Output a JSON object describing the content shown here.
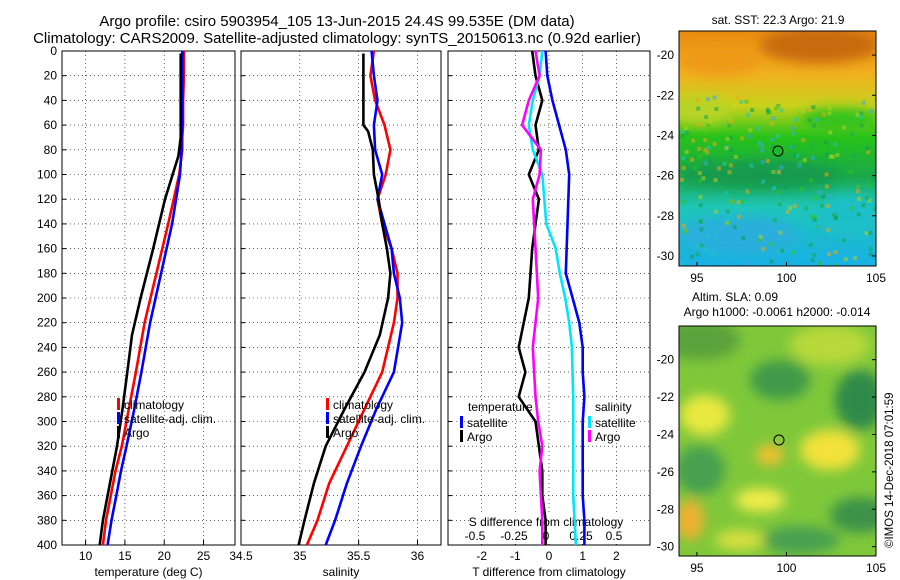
{
  "header": {
    "line1": "Argo profile: csiro 5903954_105 13-Jun-2015 24.4S 99.535E (DM data)",
    "line2": "Climatology: CARS2009. Satellite-adjusted climatology: synTS_20150613.nc (0.92d earlier)"
  },
  "footer_credit": "©IMOS 14-Dec-2018 07:01:59",
  "colors": {
    "climatology": "#ff0000",
    "satellite": "#0000ff",
    "argo": "#000000",
    "sat_salinity": "#00e5ff",
    "argo_salinity": "#ff00ff"
  },
  "chart_data": [
    {
      "type": "line",
      "name": "temperature-profile",
      "xlabel": "temperature (deg C)",
      "ylabel": "",
      "xlim": [
        7,
        29
      ],
      "ylim": [
        400,
        0
      ],
      "xticks": [
        10,
        15,
        20,
        25
      ],
      "yticks": [
        0,
        20,
        40,
        60,
        80,
        100,
        120,
        140,
        160,
        180,
        200,
        220,
        240,
        260,
        280,
        300,
        320,
        340,
        360,
        380,
        400
      ],
      "grid": true,
      "legend": {
        "position": "lower-right",
        "entries": [
          "climatology",
          "satellite-adj. clim.",
          "Argo"
        ]
      },
      "series": [
        {
          "name": "climatology",
          "color": "#ff0000",
          "x": [
            22.5,
            22.5,
            22.4,
            22.4,
            22.3,
            22.3,
            21.9,
            20.5,
            19.0,
            17.5,
            16.4,
            15.5,
            14.6,
            13.8,
            13.2,
            12.6,
            12.2
          ],
          "y": [
            0,
            20,
            40,
            60,
            70,
            80,
            100,
            140,
            180,
            220,
            260,
            290,
            320,
            340,
            360,
            380,
            400
          ]
        },
        {
          "name": "satellite-adj. clim.",
          "color": "#0000ff",
          "x": [
            22.3,
            22.3,
            22.3,
            22.3,
            22.2,
            22.2,
            22.0,
            21.0,
            19.6,
            18.2,
            17.1,
            16.2,
            15.2,
            14.5,
            13.9,
            13.3,
            12.8
          ],
          "y": [
            0,
            20,
            40,
            60,
            70,
            80,
            100,
            140,
            180,
            220,
            260,
            290,
            320,
            340,
            360,
            380,
            400
          ]
        },
        {
          "name": "Argo",
          "color": "#000000",
          "x": [
            22.1,
            22.1,
            22.1,
            22.1,
            22.1,
            21.8,
            20.1,
            18.6,
            17.0,
            15.9,
            15.3,
            14.7,
            14.0,
            13.4,
            12.8,
            12.2,
            11.8
          ],
          "y": [
            2,
            20,
            40,
            60,
            70,
            85,
            120,
            160,
            200,
            230,
            260,
            290,
            320,
            340,
            360,
            380,
            400
          ]
        }
      ]
    },
    {
      "type": "line",
      "name": "salinity-profile",
      "xlabel": "salinity",
      "xlim": [
        34.5,
        36.2
      ],
      "ylim": [
        400,
        0
      ],
      "xticks": [
        34.5,
        35,
        35.5,
        36
      ],
      "xtick_labels": [
        "34.5",
        "35",
        "35.5",
        "36"
      ],
      "grid": true,
      "legend": {
        "position": "lower-right",
        "entries": [
          "climatology",
          "satellite-adj. clim.",
          "Argo"
        ]
      },
      "series": [
        {
          "name": "climatology",
          "color": "#ff0000",
          "x": [
            35.63,
            35.6,
            35.64,
            35.72,
            35.77,
            35.73,
            35.66,
            35.7,
            35.78,
            35.83,
            35.83,
            35.8,
            35.7,
            35.55,
            35.4,
            35.25,
            35.15,
            35.06
          ],
          "y": [
            0,
            20,
            40,
            60,
            80,
            100,
            120,
            140,
            160,
            180,
            200,
            220,
            260,
            290,
            320,
            350,
            380,
            400
          ]
        },
        {
          "name": "satellite-adj. clim.",
          "color": "#0000ff",
          "x": [
            35.61,
            35.63,
            35.66,
            35.63,
            35.64,
            35.7,
            35.66,
            35.72,
            35.78,
            35.8,
            35.85,
            35.87,
            35.8,
            35.65,
            35.52,
            35.4,
            35.3,
            35.22
          ],
          "y": [
            0,
            20,
            40,
            60,
            80,
            100,
            120,
            140,
            160,
            180,
            200,
            220,
            260,
            290,
            320,
            350,
            380,
            400
          ]
        },
        {
          "name": "Argo",
          "color": "#000000",
          "x": [
            35.54,
            35.54,
            35.54,
            35.54,
            35.58,
            35.62,
            35.63,
            35.67,
            35.7,
            35.74,
            35.77,
            35.75,
            35.68,
            35.55,
            35.38,
            35.22,
            35.12,
            35.04,
            34.99
          ],
          "y": [
            2,
            20,
            40,
            60,
            65,
            80,
            100,
            120,
            140,
            160,
            180,
            200,
            230,
            260,
            290,
            320,
            350,
            380,
            400
          ]
        }
      ]
    },
    {
      "type": "line",
      "name": "difference-profile",
      "xlabel": "T difference from climatology",
      "xlabel_top": "S difference from climatology",
      "xlim": [
        -3,
        3
      ],
      "ylim": [
        400,
        0
      ],
      "xticks": [
        -2,
        -1,
        0,
        1,
        2
      ],
      "xtick_labels_t": [
        "-2",
        "-1",
        "0",
        "1",
        "2"
      ],
      "xtick_labels_s": [
        "-0.5",
        "-0.25",
        "0",
        "0.25",
        "0.5"
      ],
      "grid": true,
      "legend": {
        "temperature_title": "temperature",
        "salinity_title": "salinity",
        "entries_t": [
          "satellite",
          "Argo"
        ],
        "entries_s": [
          "satellite",
          "Argo"
        ]
      },
      "series": [
        {
          "name": "T satellite",
          "color": "#0000ff",
          "x": [
            -0.1,
            -0.05,
            0.1,
            0.3,
            0.5,
            0.6,
            0.55,
            0.5,
            0.7,
            0.9,
            1.0,
            1.0,
            1.05,
            1.0,
            1.0,
            1.0,
            1.0,
            1.05,
            1.05
          ],
          "y": [
            0,
            20,
            40,
            60,
            80,
            100,
            140,
            180,
            200,
            220,
            240,
            260,
            280,
            300,
            320,
            340,
            360,
            380,
            400
          ]
        },
        {
          "name": "T Argo",
          "color": "#000000",
          "x": [
            -0.5,
            -0.4,
            -0.2,
            -0.4,
            -0.3,
            -0.6,
            -0.3,
            -0.4,
            -0.5,
            -0.6,
            -0.9,
            -0.7,
            -0.9,
            -0.4,
            -0.3,
            -0.2,
            -0.2,
            -0.1,
            -0.1
          ],
          "y": [
            0,
            20,
            40,
            60,
            80,
            100,
            120,
            140,
            160,
            200,
            240,
            260,
            280,
            300,
            320,
            340,
            360,
            380,
            400
          ]
        },
        {
          "name": "S satellite",
          "color": "#00e5ff",
          "x": [
            -0.05,
            -0.07,
            -0.12,
            -0.15,
            -0.12,
            -0.05,
            -0.02,
            0.05,
            0.08,
            0.12,
            0.15,
            0.17,
            0.18,
            0.18,
            0.18,
            0.19,
            0.2
          ],
          "y": [
            0,
            20,
            40,
            60,
            80,
            100,
            140,
            160,
            180,
            200,
            220,
            240,
            280,
            320,
            360,
            380,
            400
          ]
        },
        {
          "name": "S Argo",
          "color": "#ff00ff",
          "x": [
            -0.1,
            -0.07,
            -0.15,
            -0.2,
            -0.06,
            -0.07,
            -0.12,
            -0.1,
            -0.08,
            -0.12,
            -0.1,
            -0.08,
            -0.05,
            -0.07,
            -0.06,
            -0.05,
            -0.05
          ],
          "y": [
            0,
            20,
            40,
            60,
            80,
            100,
            120,
            160,
            200,
            240,
            280,
            300,
            320,
            340,
            360,
            380,
            400
          ]
        }
      ]
    },
    {
      "type": "heatmap",
      "name": "sst-map",
      "title": "sat. SST: 22.3  Argo: 21.9",
      "xlim": [
        94,
        105
      ],
      "ylim": [
        -30.5,
        -18.8
      ],
      "xticks": [
        95,
        100,
        105
      ],
      "yticks": [
        -20,
        -22,
        -24,
        -26,
        -28,
        -30
      ],
      "float_position": [
        99.535,
        -24.4
      ]
    },
    {
      "type": "heatmap",
      "name": "sla-map",
      "title": "Altim. SLA: 0.09",
      "subtitle": "Argo h1000: -0.0061 h2000: -0.014",
      "xlim": [
        94,
        105
      ],
      "ylim": [
        -30.5,
        -18.2
      ],
      "xticks": [
        95,
        100,
        105
      ],
      "yticks": [
        -20,
        -22,
        -24,
        -26,
        -28,
        -30
      ],
      "float_position": [
        99.535,
        -24.4
      ]
    }
  ]
}
